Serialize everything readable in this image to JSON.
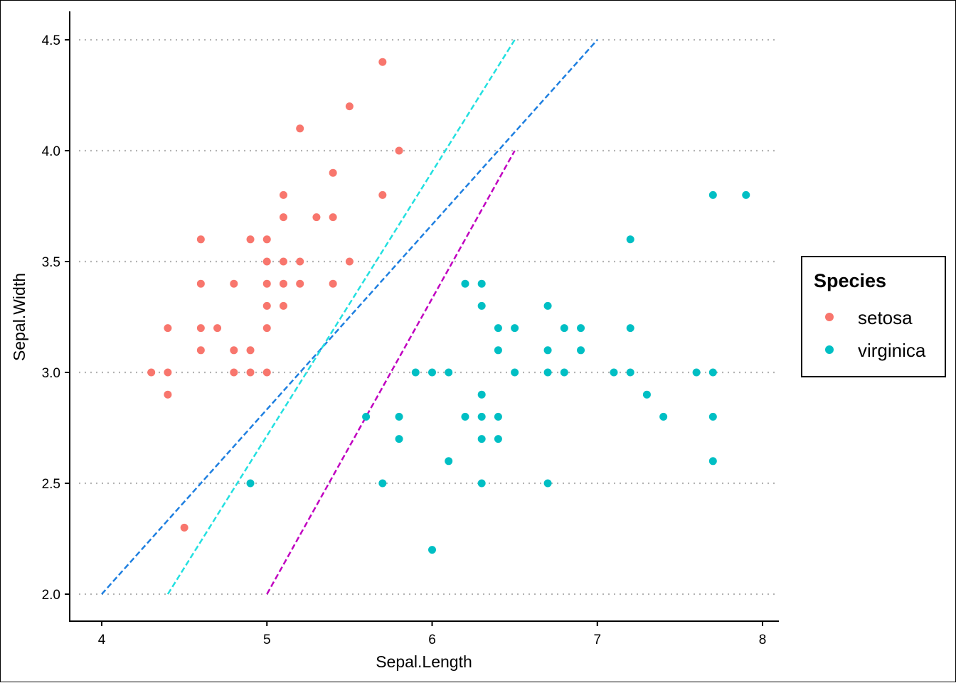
{
  "chart_data": {
    "type": "scatter",
    "title": "",
    "xlabel": "Sepal.Length",
    "ylabel": "Sepal.Width",
    "xlim": [
      3.8,
      8.1
    ],
    "ylim": [
      1.88,
      4.62
    ],
    "xticks": [
      4,
      5,
      6,
      7,
      8
    ],
    "xtick_labels": [
      "4",
      "5",
      "6",
      "7",
      "8"
    ],
    "yticks": [
      2.0,
      2.5,
      3.0,
      3.5,
      4.0,
      4.5
    ],
    "ytick_labels": [
      "2.0",
      "2.5",
      "3.0",
      "3.5",
      "4.0",
      "4.5"
    ],
    "grid": "horizontal dotted",
    "legend": {
      "title": "Species",
      "placement": "right",
      "entries": [
        "setosa",
        "virginica"
      ]
    },
    "series": [
      {
        "name": "setosa",
        "color": "#F8766D",
        "points": [
          [
            5.7,
            4.4
          ],
          [
            5.5,
            4.2
          ],
          [
            5.2,
            4.1
          ],
          [
            5.8,
            4.0
          ],
          [
            5.4,
            3.9
          ],
          [
            5.1,
            3.8
          ],
          [
            5.7,
            3.8
          ],
          [
            5.1,
            3.7
          ],
          [
            5.3,
            3.7
          ],
          [
            5.4,
            3.7
          ],
          [
            4.6,
            3.6
          ],
          [
            4.9,
            3.6
          ],
          [
            5.0,
            3.6
          ],
          [
            5.0,
            3.5
          ],
          [
            5.1,
            3.5
          ],
          [
            5.2,
            3.5
          ],
          [
            5.5,
            3.5
          ],
          [
            4.6,
            3.4
          ],
          [
            4.8,
            3.4
          ],
          [
            5.0,
            3.4
          ],
          [
            5.1,
            3.4
          ],
          [
            5.2,
            3.4
          ],
          [
            5.4,
            3.4
          ],
          [
            5.0,
            3.3
          ],
          [
            5.1,
            3.3
          ],
          [
            4.4,
            3.2
          ],
          [
            4.6,
            3.2
          ],
          [
            4.7,
            3.2
          ],
          [
            5.0,
            3.2
          ],
          [
            4.6,
            3.1
          ],
          [
            4.8,
            3.1
          ],
          [
            4.9,
            3.1
          ],
          [
            4.3,
            3.0
          ],
          [
            4.4,
            3.0
          ],
          [
            4.8,
            3.0
          ],
          [
            4.9,
            3.0
          ],
          [
            5.0,
            3.0
          ],
          [
            4.4,
            2.9
          ],
          [
            4.5,
            2.3
          ]
        ]
      },
      {
        "name": "virginica",
        "color": "#00BFC4",
        "points": [
          [
            7.7,
            3.8
          ],
          [
            7.9,
            3.8
          ],
          [
            7.2,
            3.6
          ],
          [
            6.2,
            3.4
          ],
          [
            6.3,
            3.4
          ],
          [
            6.3,
            3.3
          ],
          [
            6.7,
            3.3
          ],
          [
            6.4,
            3.2
          ],
          [
            6.5,
            3.2
          ],
          [
            6.8,
            3.2
          ],
          [
            6.9,
            3.2
          ],
          [
            7.2,
            3.2
          ],
          [
            6.4,
            3.1
          ],
          [
            6.7,
            3.1
          ],
          [
            6.9,
            3.1
          ],
          [
            5.9,
            3.0
          ],
          [
            6.0,
            3.0
          ],
          [
            6.1,
            3.0
          ],
          [
            6.5,
            3.0
          ],
          [
            6.7,
            3.0
          ],
          [
            6.8,
            3.0
          ],
          [
            7.1,
            3.0
          ],
          [
            7.2,
            3.0
          ],
          [
            7.6,
            3.0
          ],
          [
            7.7,
            3.0
          ],
          [
            6.3,
            2.9
          ],
          [
            7.3,
            2.9
          ],
          [
            5.6,
            2.8
          ],
          [
            5.8,
            2.8
          ],
          [
            6.2,
            2.8
          ],
          [
            6.3,
            2.8
          ],
          [
            6.4,
            2.8
          ],
          [
            7.4,
            2.8
          ],
          [
            7.7,
            2.8
          ],
          [
            5.8,
            2.7
          ],
          [
            6.3,
            2.7
          ],
          [
            6.4,
            2.7
          ],
          [
            6.1,
            2.6
          ],
          [
            7.7,
            2.6
          ],
          [
            4.9,
            2.5
          ],
          [
            5.7,
            2.5
          ],
          [
            6.3,
            2.5
          ],
          [
            6.7,
            2.5
          ],
          [
            6.0,
            2.2
          ]
        ]
      }
    ],
    "lines": [
      {
        "name": "blue-dashed",
        "color": "#1E7FE0",
        "from": [
          4.0,
          2.0
        ],
        "to": [
          7.0,
          4.5
        ]
      },
      {
        "name": "cyan-dashed",
        "color": "#22E0E0",
        "from": [
          4.4,
          2.0
        ],
        "to": [
          6.5,
          4.5
        ]
      },
      {
        "name": "magenta-dashed",
        "color": "#C000C0",
        "from": [
          5.0,
          2.0
        ],
        "to": [
          6.5,
          4.0
        ]
      }
    ]
  }
}
